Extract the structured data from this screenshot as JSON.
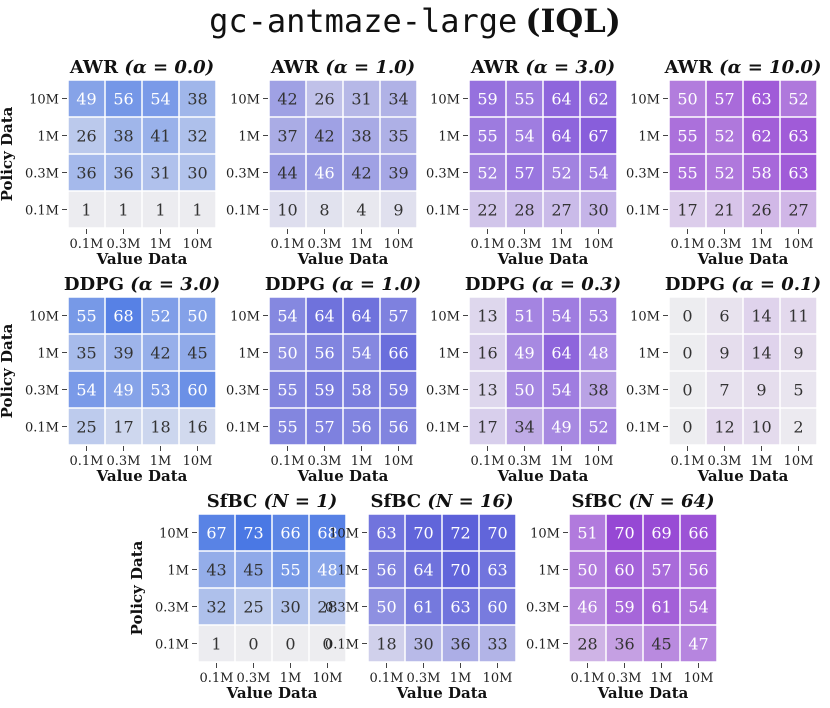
{
  "title": {
    "env": "gc-antmaze-large",
    "method": "(IQL)"
  },
  "axis_labels": {
    "x": "Value Data",
    "y": "Policy Data"
  },
  "chart_data": [
    {
      "type": "heatmap",
      "row": 0,
      "method": "AWR",
      "param": "α = 0.0",
      "palette": "blue",
      "x_ticks": [
        "0.1M",
        "0.3M",
        "1M",
        "10M"
      ],
      "y_ticks": [
        "10M",
        "1M",
        "0.3M",
        "0.1M"
      ],
      "values": [
        [
          49,
          56,
          54,
          38
        ],
        [
          26,
          38,
          41,
          32
        ],
        [
          36,
          36,
          31,
          30
        ],
        [
          1,
          1,
          1,
          1
        ]
      ],
      "vmin": 0,
      "vmax": 73
    },
    {
      "type": "heatmap",
      "row": 0,
      "method": "AWR",
      "param": "α = 1.0",
      "palette": "indigo",
      "x_ticks": [
        "0.1M",
        "0.3M",
        "1M",
        "10M"
      ],
      "y_ticks": [
        "10M",
        "1M",
        "0.3M",
        "0.1M"
      ],
      "values": [
        [
          42,
          26,
          31,
          34
        ],
        [
          37,
          42,
          38,
          35
        ],
        [
          44,
          46,
          42,
          39
        ],
        [
          10,
          8,
          4,
          9
        ]
      ],
      "vmin": 0,
      "vmax": 73
    },
    {
      "type": "heatmap",
      "row": 0,
      "method": "AWR",
      "param": "α = 3.0",
      "palette": "violet",
      "x_ticks": [
        "0.1M",
        "0.3M",
        "1M",
        "10M"
      ],
      "y_ticks": [
        "10M",
        "1M",
        "0.3M",
        "0.1M"
      ],
      "values": [
        [
          59,
          55,
          64,
          62
        ],
        [
          55,
          54,
          64,
          67
        ],
        [
          52,
          57,
          52,
          54
        ],
        [
          22,
          28,
          27,
          30
        ]
      ],
      "vmin": 0,
      "vmax": 73
    },
    {
      "type": "heatmap",
      "row": 0,
      "method": "AWR",
      "param": "α = 10.0",
      "palette": "purple",
      "x_ticks": [
        "0.1M",
        "0.3M",
        "1M",
        "10M"
      ],
      "y_ticks": [
        "10M",
        "1M",
        "0.3M",
        "0.1M"
      ],
      "values": [
        [
          50,
          57,
          63,
          52
        ],
        [
          55,
          52,
          62,
          63
        ],
        [
          55,
          52,
          58,
          63
        ],
        [
          17,
          21,
          26,
          27
        ]
      ],
      "vmin": 0,
      "vmax": 73
    },
    {
      "type": "heatmap",
      "row": 1,
      "method": "DDPG",
      "param": "α = 3.0",
      "palette": "blue",
      "x_ticks": [
        "0.1M",
        "0.3M",
        "1M",
        "10M"
      ],
      "y_ticks": [
        "10M",
        "1M",
        "0.3M",
        "0.1M"
      ],
      "values": [
        [
          55,
          68,
          52,
          50
        ],
        [
          35,
          39,
          42,
          45
        ],
        [
          54,
          49,
          53,
          60
        ],
        [
          25,
          17,
          18,
          16
        ]
      ],
      "vmin": 0,
      "vmax": 73
    },
    {
      "type": "heatmap",
      "row": 1,
      "method": "DDPG",
      "param": "α = 1.0",
      "palette": "indigo",
      "x_ticks": [
        "0.1M",
        "0.3M",
        "1M",
        "10M"
      ],
      "y_ticks": [
        "10M",
        "1M",
        "0.3M",
        "0.1M"
      ],
      "values": [
        [
          54,
          64,
          64,
          57
        ],
        [
          50,
          56,
          54,
          66
        ],
        [
          55,
          59,
          58,
          59
        ],
        [
          55,
          57,
          56,
          56
        ]
      ],
      "vmin": 0,
      "vmax": 73
    },
    {
      "type": "heatmap",
      "row": 1,
      "method": "DDPG",
      "param": "α = 0.3",
      "palette": "violet",
      "x_ticks": [
        "0.1M",
        "0.3M",
        "1M",
        "10M"
      ],
      "y_ticks": [
        "10M",
        "1M",
        "0.3M",
        "0.1M"
      ],
      "values": [
        [
          13,
          51,
          54,
          53
        ],
        [
          16,
          49,
          64,
          48
        ],
        [
          13,
          50,
          54,
          38
        ],
        [
          17,
          34,
          49,
          52
        ]
      ],
      "vmin": 0,
      "vmax": 73
    },
    {
      "type": "heatmap",
      "row": 1,
      "method": "DDPG",
      "param": "α = 0.1",
      "palette": "purple",
      "x_ticks": [
        "0.1M",
        "0.3M",
        "1M",
        "10M"
      ],
      "y_ticks": [
        "10M",
        "1M",
        "0.3M",
        "0.1M"
      ],
      "values": [
        [
          0,
          6,
          14,
          11
        ],
        [
          0,
          9,
          14,
          9
        ],
        [
          0,
          7,
          9,
          5
        ],
        [
          0,
          12,
          10,
          2
        ]
      ],
      "vmin": 0,
      "vmax": 73
    },
    {
      "type": "heatmap",
      "row": 2,
      "method": "SfBC",
      "param": "N = 1",
      "palette": "blue",
      "x_ticks": [
        "0.1M",
        "0.3M",
        "1M",
        "10M"
      ],
      "y_ticks": [
        "10M",
        "1M",
        "0.3M",
        "0.1M"
      ],
      "values": [
        [
          67,
          73,
          66,
          68
        ],
        [
          43,
          45,
          55,
          48
        ],
        [
          32,
          25,
          30,
          28
        ],
        [
          1,
          0,
          0,
          0
        ]
      ],
      "vmin": 0,
      "vmax": 73
    },
    {
      "type": "heatmap",
      "row": 2,
      "method": "SfBC",
      "param": "N = 16",
      "palette": "indigo",
      "x_ticks": [
        "0.1M",
        "0.3M",
        "1M",
        "10M"
      ],
      "y_ticks": [
        "10M",
        "1M",
        "0.3M",
        "0.1M"
      ],
      "values": [
        [
          63,
          70,
          72,
          70
        ],
        [
          56,
          64,
          70,
          63
        ],
        [
          50,
          61,
          63,
          60
        ],
        [
          18,
          30,
          36,
          33
        ]
      ],
      "vmin": 0,
      "vmax": 73
    },
    {
      "type": "heatmap",
      "row": 2,
      "method": "SfBC",
      "param": "N = 64",
      "palette": "purple",
      "x_ticks": [
        "0.1M",
        "0.3M",
        "1M",
        "10M"
      ],
      "y_ticks": [
        "10M",
        "1M",
        "0.3M",
        "0.1M"
      ],
      "values": [
        [
          51,
          70,
          69,
          66
        ],
        [
          50,
          60,
          57,
          56
        ],
        [
          46,
          59,
          61,
          54
        ],
        [
          28,
          36,
          45,
          47
        ]
      ],
      "vmin": 0,
      "vmax": 73
    }
  ],
  "palettes": {
    "low": "#ededf0",
    "blue": "#4a78e4",
    "indigo": "#5a5ed9",
    "violet": "#7e4fd9",
    "purple": "#9240d3",
    "dark_text": "#333333",
    "light_text": "#ffffff"
  }
}
